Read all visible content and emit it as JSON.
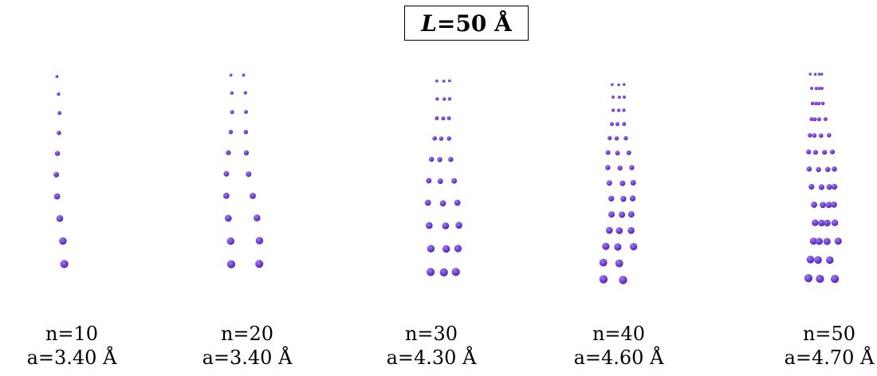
{
  "title": {
    "var": "L",
    "rest": "=50 Å"
  },
  "colors": {
    "lattice": "#e8141a",
    "atom": "#5522bb",
    "atom_highlight": "#9c7cf0",
    "text": "#000000"
  },
  "panels": [
    {
      "n_label": "n=10",
      "a_label": "a=3.40 Å",
      "n": 10,
      "a_angstrom": 3.4
    },
    {
      "n_label": "n=20",
      "a_label": "a=3.40 Å",
      "n": 20,
      "a_angstrom": 3.4
    },
    {
      "n_label": "n=30",
      "a_label": "a=4.30 Å",
      "n": 30,
      "a_angstrom": 4.3
    },
    {
      "n_label": "n=40",
      "a_label": "a=4.60 Å",
      "n": 40,
      "a_angstrom": 4.6
    },
    {
      "n_label": "n=50",
      "a_label": "a=4.70 Å",
      "n": 50,
      "a_angstrom": 4.7
    }
  ]
}
